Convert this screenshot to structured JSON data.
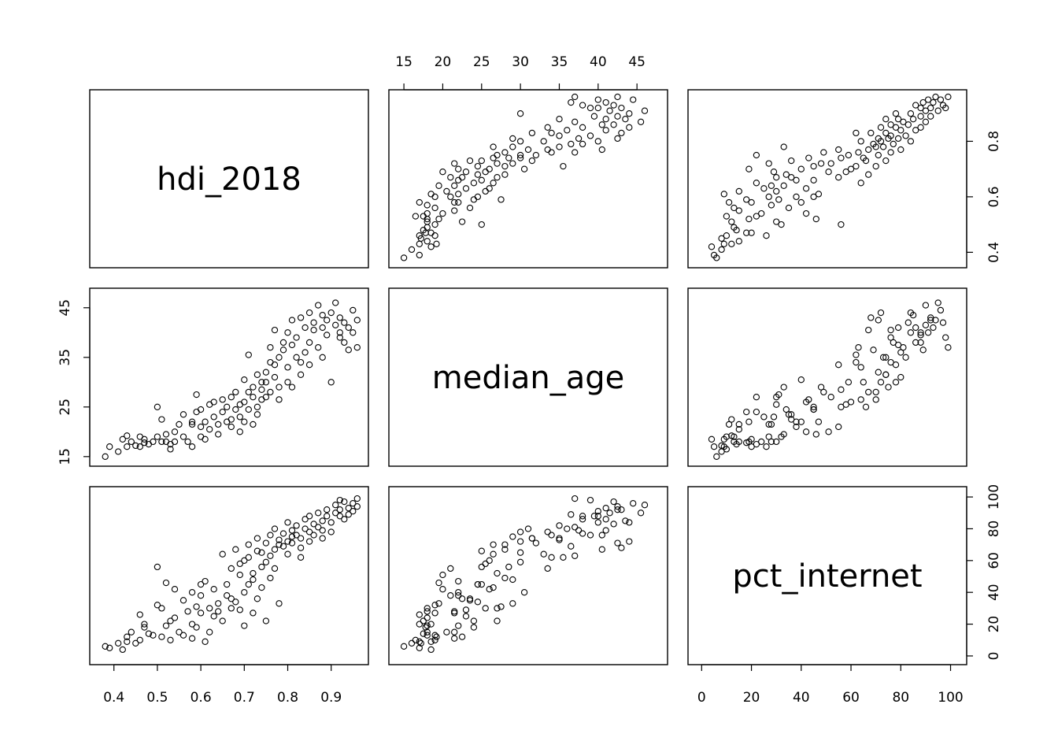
{
  "chart_data": {
    "type": "scatter",
    "title": "",
    "layout": "scatterplot-matrix",
    "grid": false,
    "variables": [
      {
        "name": "hdi_2018",
        "range": [
          0.37,
          0.96
        ],
        "ticks": [
          0.4,
          0.5,
          0.6,
          0.7,
          0.8,
          0.9
        ],
        "tick_labels": [
          "0.4",
          "0.5",
          "0.6",
          "0.7",
          "0.8",
          "0.9"
        ]
      },
      {
        "name": "median_age",
        "range": [
          14.5,
          47.5
        ],
        "ticks": [
          15,
          20,
          25,
          30,
          35,
          40,
          45
        ],
        "tick_labels": [
          "15",
          "20",
          "25",
          "30",
          "35",
          "40",
          "45"
        ]
      },
      {
        "name": "pct_internet",
        "range": [
          -1,
          102
        ],
        "ticks": [
          0,
          20,
          40,
          60,
          80,
          100
        ],
        "tick_labels": [
          "0",
          "20",
          "40",
          "60",
          "80",
          "100"
        ]
      }
    ],
    "left_axis_ticks": [
      {
        "row": 1,
        "ticks": [
          15,
          25,
          35,
          45
        ],
        "tick_labels": [
          "15",
          "25",
          "35",
          "45"
        ]
      }
    ],
    "right_axis_ticks": [
      {
        "row": 0,
        "ticks": [
          0.4,
          0.6,
          0.8
        ],
        "tick_labels": [
          "0.4",
          "0.6",
          "0.8"
        ]
      },
      {
        "row": 2,
        "ticks": [
          0,
          20,
          40,
          60,
          80,
          100
        ],
        "tick_labels": [
          "0",
          "20",
          "40",
          "60",
          "80",
          "100"
        ]
      }
    ],
    "points": [
      [
        0.38,
        15.0,
        6
      ],
      [
        0.39,
        17.0,
        5
      ],
      [
        0.41,
        16.0,
        8
      ],
      [
        0.42,
        18.5,
        4
      ],
      [
        0.43,
        17.0,
        9
      ],
      [
        0.43,
        19.2,
        12
      ],
      [
        0.44,
        18.0,
        15
      ],
      [
        0.45,
        17.2,
        8
      ],
      [
        0.46,
        19.0,
        10
      ],
      [
        0.46,
        17.0,
        26
      ],
      [
        0.47,
        18.5,
        20
      ],
      [
        0.47,
        17.8,
        18
      ],
      [
        0.48,
        17.5,
        14
      ],
      [
        0.49,
        18.0,
        13
      ],
      [
        0.5,
        25.0,
        56
      ],
      [
        0.5,
        19.0,
        32
      ],
      [
        0.51,
        18.0,
        30
      ],
      [
        0.51,
        22.5,
        12
      ],
      [
        0.52,
        19.5,
        46
      ],
      [
        0.52,
        18.0,
        19
      ],
      [
        0.53,
        17.5,
        22
      ],
      [
        0.53,
        16.5,
        10
      ],
      [
        0.54,
        20.0,
        42
      ],
      [
        0.54,
        18.0,
        24
      ],
      [
        0.55,
        21.5,
        15
      ],
      [
        0.56,
        23.5,
        35
      ],
      [
        0.56,
        19.0,
        13
      ],
      [
        0.57,
        18.0,
        28
      ],
      [
        0.58,
        17.0,
        20
      ],
      [
        0.58,
        22.0,
        40
      ],
      [
        0.59,
        24.0,
        18
      ],
      [
        0.59,
        27.5,
        31
      ],
      [
        0.6,
        19.0,
        27
      ],
      [
        0.6,
        21.0,
        38
      ],
      [
        0.61,
        18.5,
        9
      ],
      [
        0.61,
        22.0,
        47
      ],
      [
        0.62,
        20.5,
        15
      ],
      [
        0.62,
        25.5,
        30
      ],
      [
        0.63,
        23.0,
        25
      ],
      [
        0.64,
        19.5,
        33
      ],
      [
        0.64,
        21.5,
        28
      ],
      [
        0.65,
        26.5,
        64
      ],
      [
        0.65,
        24.0,
        22
      ],
      [
        0.66,
        22.0,
        38
      ],
      [
        0.66,
        25.0,
        45
      ],
      [
        0.67,
        21.0,
        55
      ],
      [
        0.67,
        27.0,
        30
      ],
      [
        0.68,
        24.5,
        34
      ],
      [
        0.68,
        28.0,
        67
      ],
      [
        0.69,
        20.0,
        51
      ],
      [
        0.69,
        23.0,
        29
      ],
      [
        0.7,
        26.0,
        60
      ],
      [
        0.7,
        30.5,
        40
      ],
      [
        0.7,
        22.0,
        19
      ],
      [
        0.71,
        28.0,
        70
      ],
      [
        0.71,
        24.5,
        45
      ],
      [
        0.71,
        35.5,
        62
      ],
      [
        0.72,
        27.0,
        52
      ],
      [
        0.72,
        21.5,
        27
      ],
      [
        0.72,
        29.0,
        48
      ],
      [
        0.73,
        25.0,
        66
      ],
      [
        0.73,
        31.5,
        74
      ],
      [
        0.73,
        23.5,
        36
      ],
      [
        0.74,
        28.5,
        56
      ],
      [
        0.74,
        26.5,
        43
      ],
      [
        0.75,
        32.0,
        71
      ],
      [
        0.75,
        27.0,
        22
      ],
      [
        0.75,
        30.0,
        59
      ],
      [
        0.76,
        34.0,
        76
      ],
      [
        0.76,
        37.0,
        63
      ],
      [
        0.76,
        28.0,
        49
      ],
      [
        0.77,
        31.0,
        80
      ],
      [
        0.77,
        40.5,
        67
      ],
      [
        0.77,
        33.5,
        55
      ],
      [
        0.78,
        35.0,
        73
      ],
      [
        0.78,
        29.0,
        33
      ],
      [
        0.79,
        36.5,
        69
      ],
      [
        0.79,
        38.0,
        77
      ],
      [
        0.8,
        30.0,
        72
      ],
      [
        0.8,
        40.0,
        84
      ],
      [
        0.8,
        33.0,
        64
      ],
      [
        0.81,
        37.5,
        79
      ],
      [
        0.81,
        42.5,
        71
      ],
      [
        0.81,
        29.0,
        75
      ],
      [
        0.82,
        35.0,
        82
      ],
      [
        0.82,
        39.0,
        76
      ],
      [
        0.83,
        43.0,
        68
      ],
      [
        0.83,
        31.5,
        74
      ],
      [
        0.84,
        41.0,
        86
      ],
      [
        0.84,
        36.0,
        80
      ],
      [
        0.85,
        44.0,
        72
      ],
      [
        0.85,
        38.0,
        88
      ],
      [
        0.85,
        33.5,
        78
      ],
      [
        0.86,
        42.0,
        83
      ],
      [
        0.86,
        40.5,
        76
      ],
      [
        0.87,
        45.5,
        90
      ],
      [
        0.87,
        37.0,
        81
      ],
      [
        0.88,
        43.5,
        85
      ],
      [
        0.88,
        41.0,
        79
      ],
      [
        0.89,
        39.5,
        88
      ],
      [
        0.89,
        42.5,
        92
      ],
      [
        0.9,
        44.0,
        84
      ],
      [
        0.9,
        30.0,
        78
      ],
      [
        0.91,
        41.5,
        90
      ],
      [
        0.91,
        46.0,
        95
      ],
      [
        0.92,
        40.0,
        88
      ],
      [
        0.92,
        43.0,
        92
      ],
      [
        0.93,
        38.0,
        86
      ],
      [
        0.93,
        42.0,
        97
      ],
      [
        0.94,
        41.0,
        93
      ],
      [
        0.94,
        36.5,
        89
      ],
      [
        0.95,
        44.5,
        96
      ],
      [
        0.95,
        40.0,
        91
      ],
      [
        0.96,
        37.0,
        99
      ],
      [
        0.96,
        42.5,
        94
      ],
      [
        0.58,
        21.5,
        11
      ],
      [
        0.6,
        24.5,
        45
      ],
      [
        0.63,
        26.0,
        42
      ],
      [
        0.67,
        22.5,
        36
      ],
      [
        0.69,
        25.5,
        58
      ],
      [
        0.74,
        30.0,
        65
      ],
      [
        0.78,
        26.5,
        70
      ],
      [
        0.83,
        34.0,
        62
      ],
      [
        0.88,
        35.0,
        74
      ],
      [
        0.92,
        39.0,
        98
      ]
    ]
  }
}
